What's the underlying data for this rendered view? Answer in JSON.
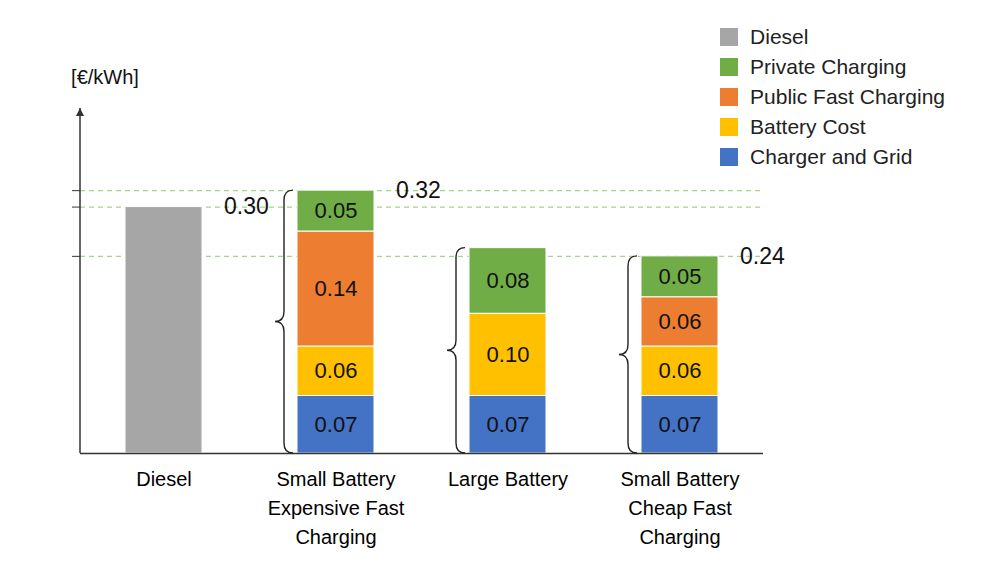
{
  "chart_data": {
    "type": "bar",
    "stacked": true,
    "y_label": "[€/kWh]",
    "categories": [
      "Diesel",
      "Small Battery Expensive Fast Charging",
      "Large Battery",
      "Small Battery Cheap Fast Charging"
    ],
    "series": [
      {
        "name": "Diesel",
        "color": "#a6a6a6",
        "values": [
          0.3,
          null,
          null,
          null
        ],
        "value_labels": [
          null,
          null,
          null,
          null
        ]
      },
      {
        "name": "Private Charging",
        "color": "#70ad47",
        "values": [
          null,
          0.05,
          0.08,
          0.05
        ],
        "value_labels": [
          null,
          "0.05",
          "0.08",
          "0.05"
        ]
      },
      {
        "name": "Public Fast Charging",
        "color": "#ed7d31",
        "values": [
          null,
          0.14,
          null,
          0.06
        ],
        "value_labels": [
          null,
          "0.14",
          null,
          "0.06"
        ]
      },
      {
        "name": "Battery Cost",
        "color": "#ffc000",
        "values": [
          null,
          0.06,
          0.1,
          0.06
        ],
        "value_labels": [
          null,
          "0.06",
          "0.10",
          "0.06"
        ]
      },
      {
        "name": "Charger and Grid",
        "color": "#4472c4",
        "values": [
          null,
          0.07,
          0.07,
          0.07
        ],
        "value_labels": [
          null,
          "0.07",
          "0.07",
          "0.07"
        ]
      }
    ],
    "annotations": [
      {
        "text": "0.30",
        "category": "Diesel",
        "value": 0.3
      },
      {
        "text": "0.32",
        "category": "Small Battery Expensive Fast Charging",
        "value": 0.32
      },
      {
        "text": "0.24",
        "category": "Small Battery Cheap Fast Charging",
        "value": 0.24
      }
    ],
    "ylim": [
      0,
      0.42
    ],
    "yticks": [
      0.24,
      0.3,
      0.32
    ],
    "grid": true,
    "legend": "top-right",
    "data_labels": true,
    "tick_labels": "x"
  }
}
